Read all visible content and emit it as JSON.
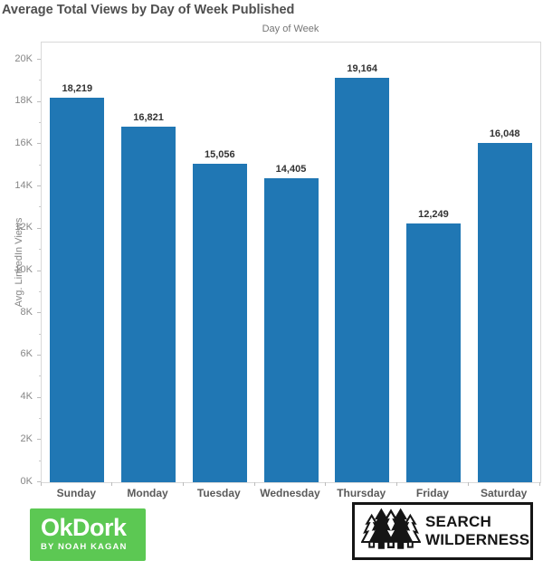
{
  "title": "Average Total Views by Day of Week Published",
  "chart_data": {
    "type": "bar",
    "title": "Average Total Views by Day of Week Published",
    "xlabel": "Day of Week",
    "ylabel": "Avg. LinkedIn Views",
    "categories": [
      "Sunday",
      "Monday",
      "Tuesday",
      "Wednesday",
      "Thursday",
      "Friday",
      "Saturday"
    ],
    "values": [
      18219,
      16821,
      15056,
      14405,
      19164,
      12249,
      16048
    ],
    "value_labels": [
      "18,219",
      "16,821",
      "15,056",
      "14,405",
      "19,164",
      "12,249",
      "16,048"
    ],
    "ylim": [
      0,
      20815
    ],
    "yticks_major": [
      0,
      2000,
      4000,
      6000,
      8000,
      10000,
      12000,
      14000,
      16000,
      18000,
      20000
    ],
    "ytick_labels": [
      "0K",
      "2K",
      "4K",
      "6K",
      "8K",
      "10K",
      "12K",
      "14K",
      "16K",
      "18K",
      "20K"
    ],
    "yticks_minor": [
      1000,
      3000,
      5000,
      7000,
      9000,
      11000,
      13000,
      15000,
      17000,
      19000
    ],
    "bar_color": "#2077b4",
    "grid": false,
    "legend": null,
    "legend_position": null
  },
  "logos": {
    "okdork": {
      "text": "OkDork",
      "subtext": "BY NOAH KAGAN",
      "bg_color": "#5cc853",
      "text_color": "#ffffff"
    },
    "search_wilderness": {
      "line1": "SEARCH",
      "line2": "WILDERNESS",
      "icon": "pine-trees-icon",
      "border_color": "#151515"
    }
  }
}
